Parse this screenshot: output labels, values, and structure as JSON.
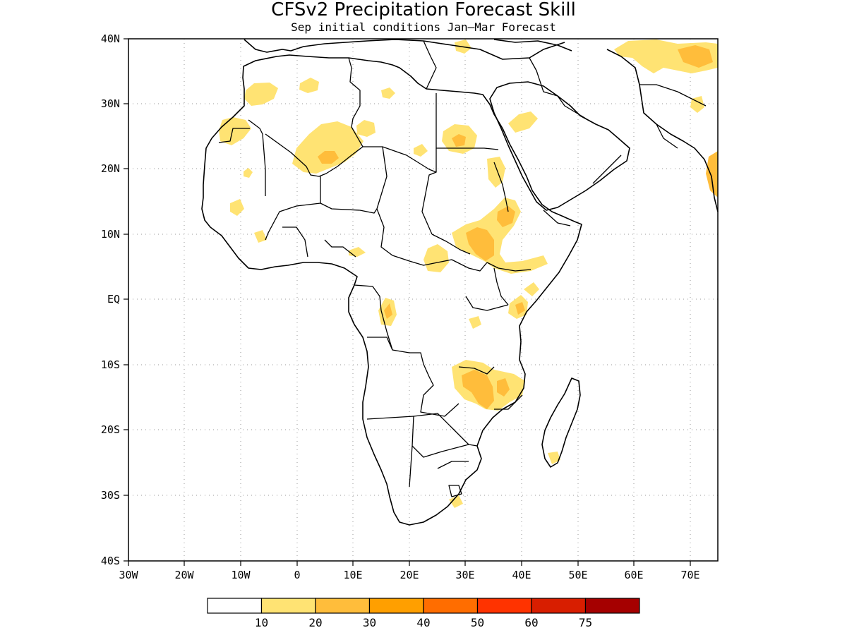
{
  "title": "CFSv2 Precipitation Forecast Skill",
  "subtitle": "Sep initial conditions  Jan—Mar Forecast",
  "axes": {
    "lon_labels": [
      "30W",
      "20W",
      "10W",
      "0",
      "10E",
      "20E",
      "30E",
      "40E",
      "50E",
      "60E",
      "70E"
    ],
    "lat_labels": [
      "40N",
      "30N",
      "20N",
      "10N",
      "EQ",
      "10S",
      "20S",
      "30S",
      "40S"
    ]
  },
  "colorbar": {
    "colors": [
      "#ffffff",
      "#ffe373",
      "#ffbd3b",
      "#ff9f00",
      "#ff6d00",
      "#ff3300",
      "#d81e00",
      "#a50000"
    ],
    "labels": [
      "10",
      "20",
      "30",
      "40",
      "50",
      "60",
      "75"
    ]
  },
  "legend_ranges": [
    "<10",
    "10-20",
    "20-30",
    "30-40",
    "40-50",
    "50-60",
    "60-75",
    ">75"
  ]
}
